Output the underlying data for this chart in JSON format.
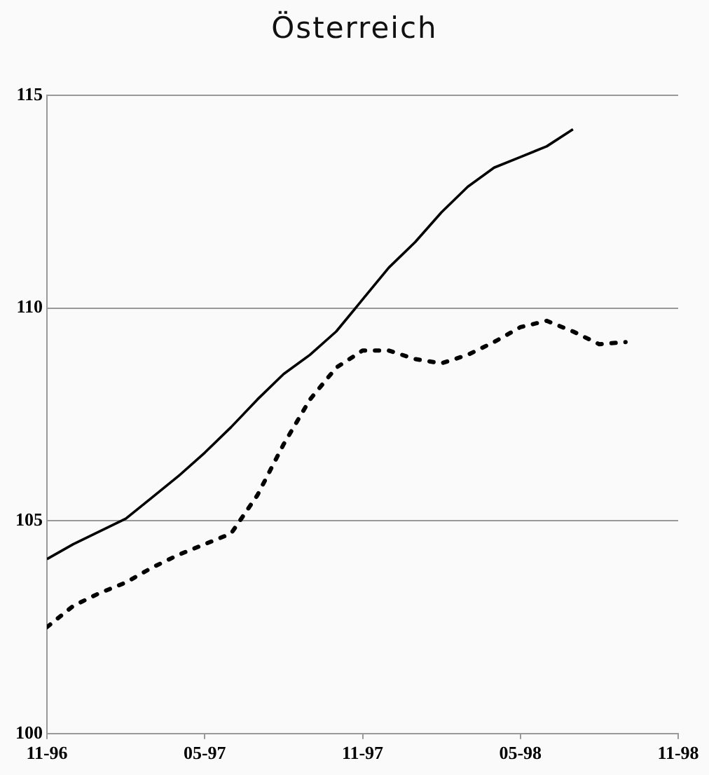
{
  "chart_data": {
    "type": "line",
    "title": "Österreich",
    "x": [
      "1996-11",
      "1996-12",
      "1997-01",
      "1997-02",
      "1997-03",
      "1997-04",
      "1997-05",
      "1997-06",
      "1997-07",
      "1997-08",
      "1997-09",
      "1997-10",
      "1997-11",
      "1997-12",
      "1998-01",
      "1998-02",
      "1998-03",
      "1998-04",
      "1998-05",
      "1998-06",
      "1998-07",
      "1998-08",
      "1998-09"
    ],
    "series": [
      {
        "color": "#000000",
        "line_style": "solid",
        "values": [
          104.1,
          104.45,
          104.75,
          105.05,
          105.55,
          106.05,
          106.6,
          107.2,
          107.85,
          108.45,
          108.9,
          109.45,
          110.2,
          110.95,
          111.55,
          112.25,
          112.85,
          113.3,
          113.55,
          113.8,
          114.2,
          null,
          null
        ]
      },
      {
        "color": "#000000",
        "line_style": "dotted",
        "values": [
          102.5,
          103.0,
          103.3,
          103.55,
          103.9,
          104.2,
          104.45,
          104.7,
          105.6,
          106.8,
          107.85,
          108.6,
          109.0,
          109.0,
          108.8,
          108.7,
          108.9,
          109.2,
          109.55,
          109.7,
          109.45,
          109.15,
          109.2
        ]
      }
    ],
    "xlim": [
      "1996-11",
      "1998-11"
    ],
    "xticks": [
      {
        "value": "1996-11",
        "label": "11-96"
      },
      {
        "value": "1997-05",
        "label": "05-97"
      },
      {
        "value": "1997-11",
        "label": "11-97"
      },
      {
        "value": "1998-05",
        "label": "05-98"
      },
      {
        "value": "1998-11",
        "label": "11-98"
      }
    ],
    "ylim": [
      100,
      115
    ],
    "yticks": [
      100,
      105,
      110,
      115
    ],
    "grid": "y",
    "legend": false,
    "marker": "none"
  }
}
